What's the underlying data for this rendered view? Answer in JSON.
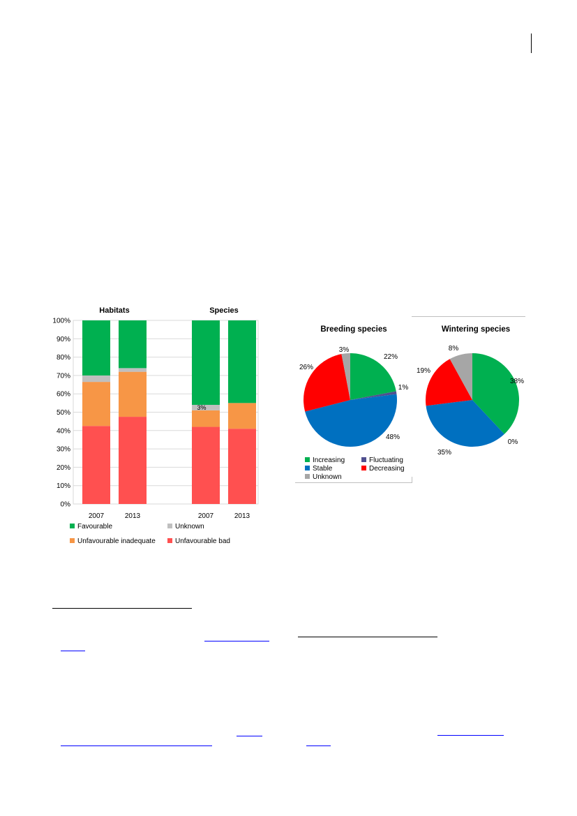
{
  "colors": {
    "favourable": "#00b050",
    "unknown_habitat": "#bfbfbf",
    "unfavourable_inadequate": "#f79646",
    "unfavourable_bad": "#ff5050",
    "increasing": "#00b050",
    "fluctuating": "#4f4f8f",
    "stable": "#0070c0",
    "decreasing": "#ff0000",
    "unknown_birds": "#a6a6a6"
  },
  "chart_data": [
    {
      "type": "bar",
      "stacked": true,
      "group_titles": [
        "Habitats",
        "Species"
      ],
      "categories": [
        "2007",
        "2013",
        "2007",
        "2013"
      ],
      "category_groups": [
        "Habitats",
        "Habitats",
        "Species",
        "Species"
      ],
      "ylim": [
        0,
        100
      ],
      "y_ticks": [
        "0%",
        "10%",
        "20%",
        "30%",
        "40%",
        "50%",
        "60%",
        "70%",
        "80%",
        "90%",
        "100%"
      ],
      "grid": true,
      "legend_position": "bottom",
      "series": [
        {
          "name": "Unfavourable bad",
          "color_key": "unfavourable_bad",
          "values": [
            42.5,
            47.5,
            42,
            41
          ]
        },
        {
          "name": "Unfavourable inadequate",
          "color_key": "unfavourable_inadequate",
          "values": [
            24,
            24.5,
            9,
            14
          ]
        },
        {
          "name": "Unknown",
          "color_key": "unknown_habitat",
          "values": [
            3.5,
            2,
            3,
            0
          ]
        },
        {
          "name": "Favourable",
          "color_key": "favourable",
          "values": [
            30,
            26,
            46,
            45
          ]
        }
      ],
      "legend": [
        "Favourable",
        "Unknown",
        "Unfavourable inadequate",
        "Unfavourable bad"
      ],
      "annotations": [
        {
          "text": "3%",
          "category_index": 2
        }
      ]
    },
    {
      "type": "pie",
      "title": "Breeding species",
      "slices": [
        {
          "label": "Increasing",
          "value": 22,
          "text": "22%",
          "color_key": "increasing"
        },
        {
          "label": "Fluctuating",
          "value": 1,
          "text": "1%",
          "color_key": "fluctuating"
        },
        {
          "label": "Stable",
          "value": 48,
          "text": "48%",
          "color_key": "stable"
        },
        {
          "label": "Decreasing",
          "value": 26,
          "text": "26%",
          "color_key": "decreasing"
        },
        {
          "label": "Unknown",
          "value": 3,
          "text": "3%",
          "color_key": "unknown_birds"
        }
      ],
      "legend": [
        "Increasing",
        "Fluctuating",
        "Stable",
        "Decreasing",
        "Unknown"
      ],
      "legend_position": "bottom"
    },
    {
      "type": "pie",
      "title": "Wintering species",
      "slices": [
        {
          "label": "Increasing",
          "value": 38,
          "text": "38%",
          "color_key": "increasing"
        },
        {
          "label": "Fluctuating",
          "value": 0,
          "text": "0%",
          "color_key": "fluctuating"
        },
        {
          "label": "Stable",
          "value": 35,
          "text": "35%",
          "color_key": "stable"
        },
        {
          "label": "Decreasing",
          "value": 19,
          "text": "19%",
          "color_key": "decreasing"
        },
        {
          "label": "Unknown",
          "value": 8,
          "text": "8%",
          "color_key": "unknown_birds"
        }
      ]
    }
  ]
}
